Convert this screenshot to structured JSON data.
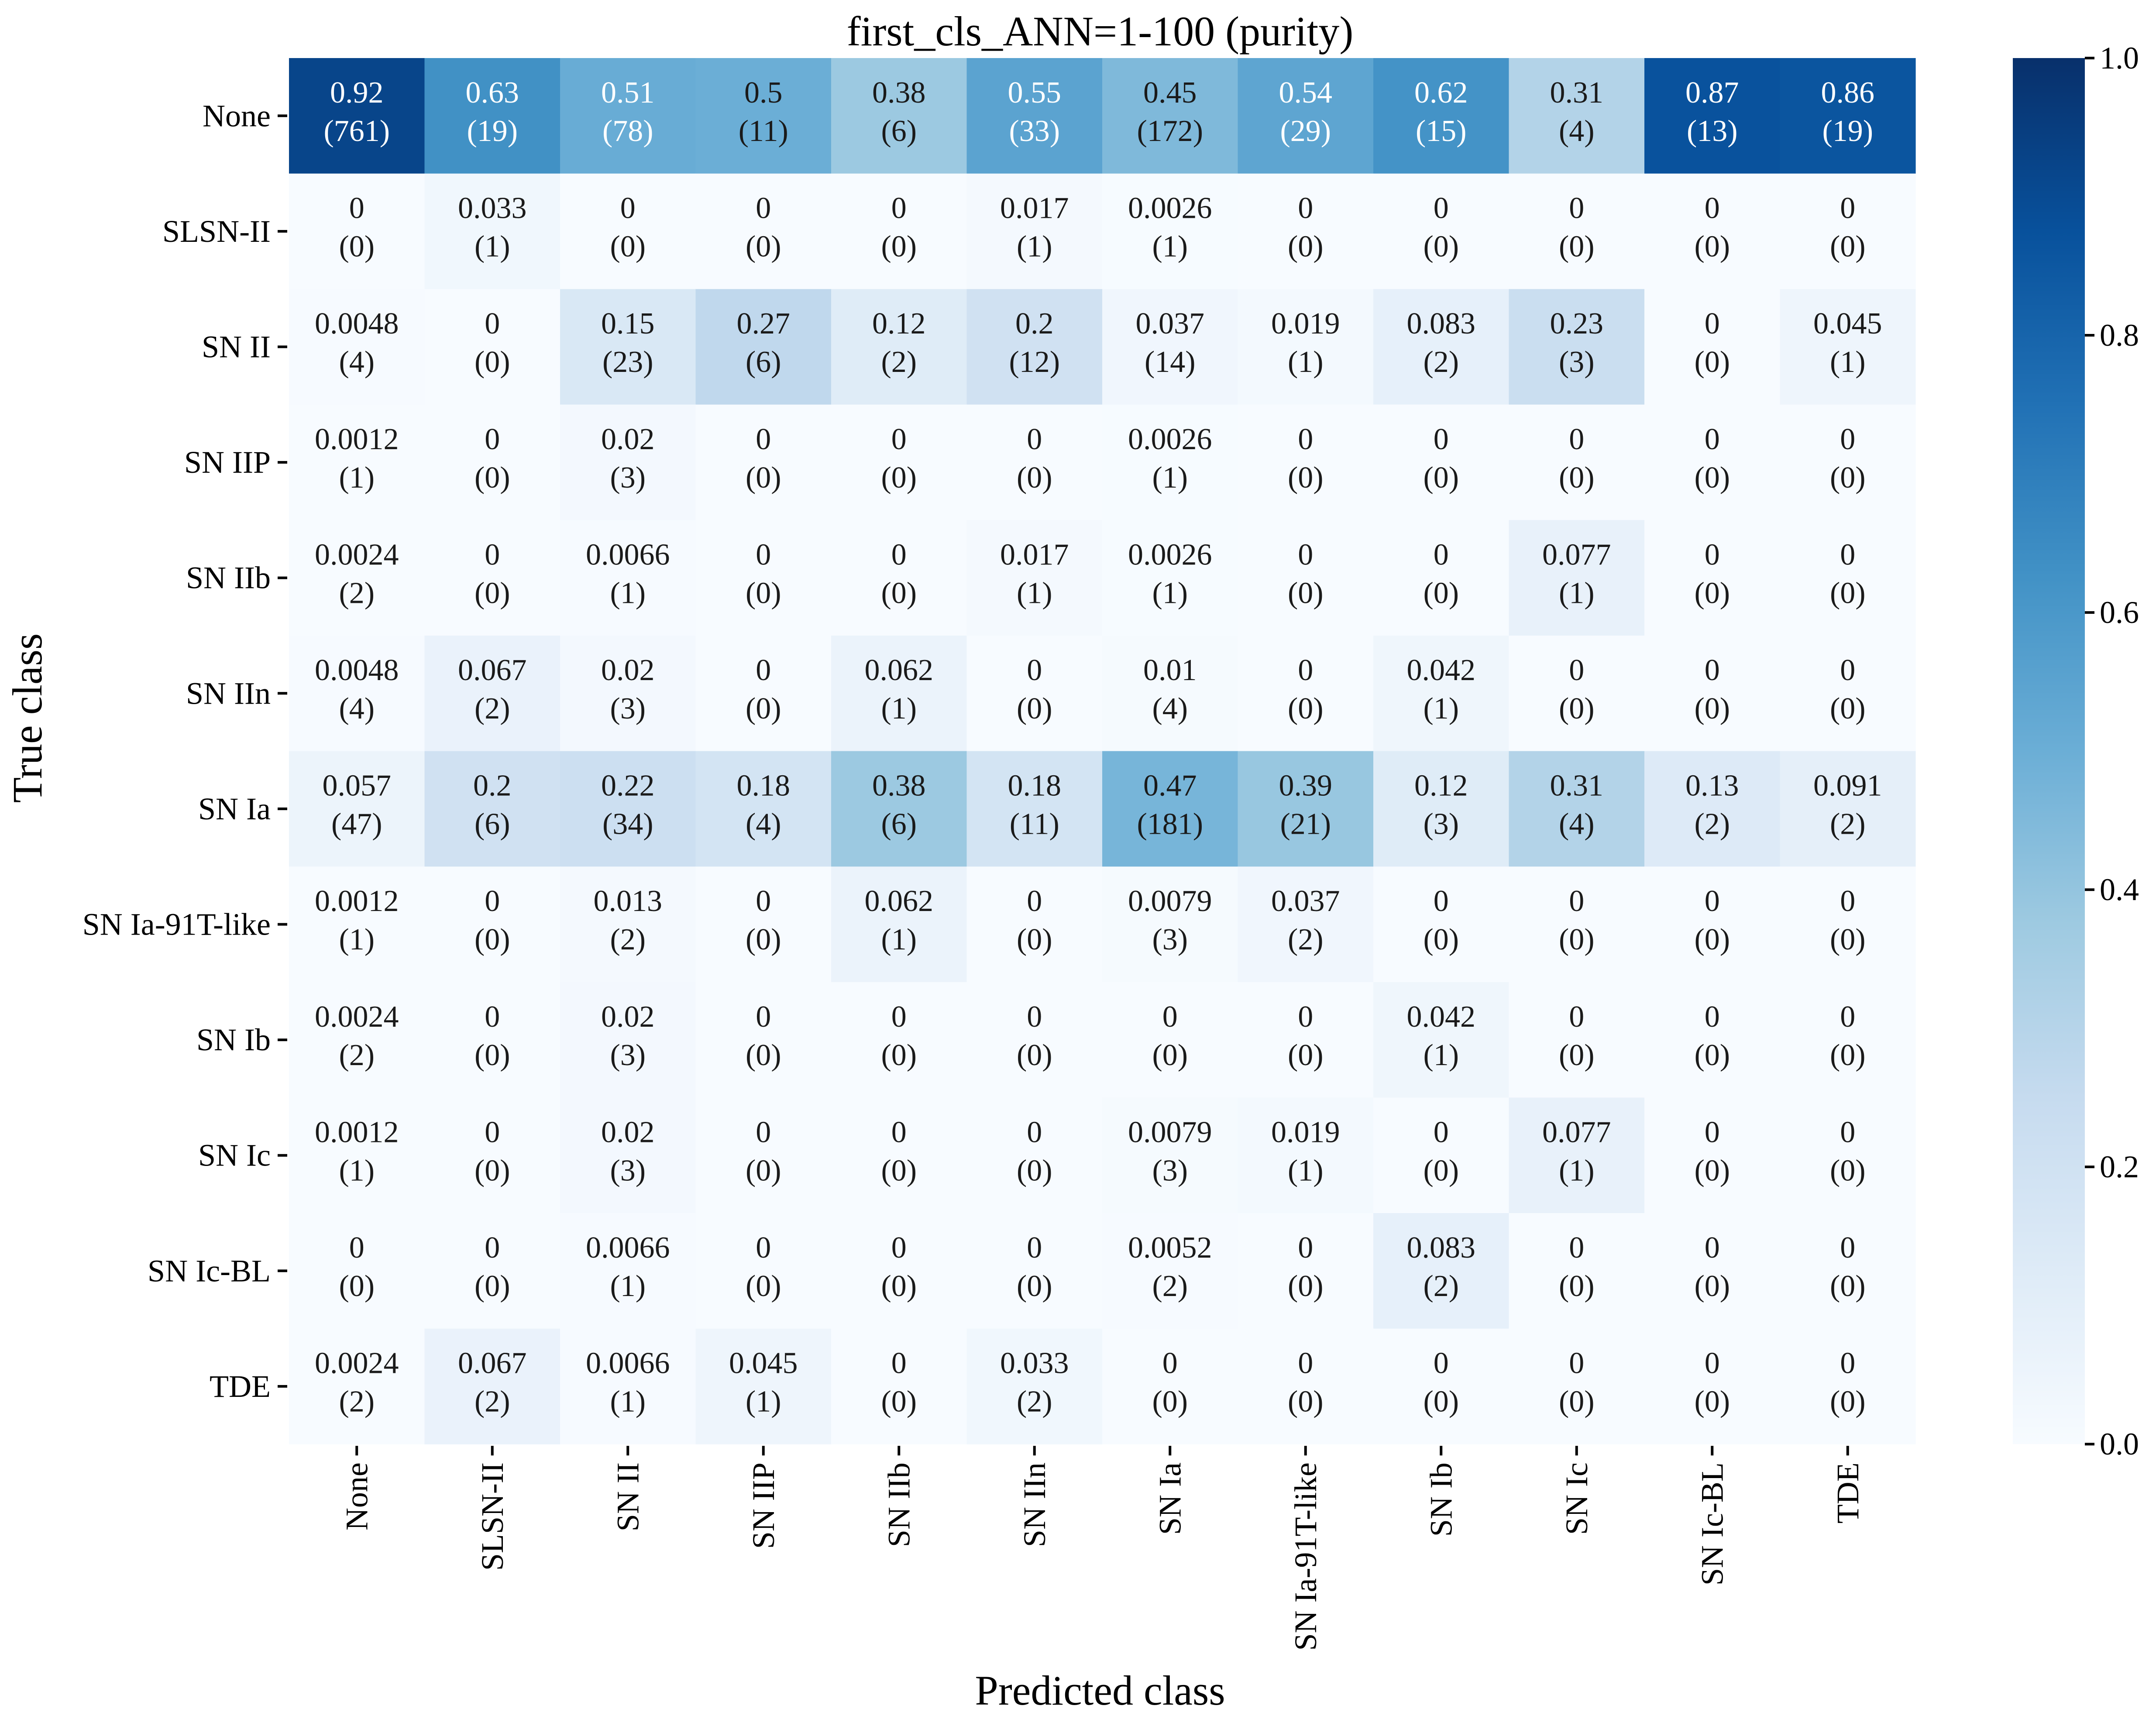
{
  "chart_data": {
    "type": "heatmap",
    "title": "first_cls_ANN=1-100 (purity)",
    "xlabel": "Predicted class",
    "ylabel": "True class",
    "x_categories": [
      "None",
      "SLSN-II",
      "SN II",
      "SN IIP",
      "SN IIb",
      "SN IIn",
      "SN Ia",
      "SN Ia-91T-like",
      "SN Ib",
      "SN Ic",
      "SN Ic-BL",
      "TDE"
    ],
    "y_categories": [
      "None",
      "SLSN-II",
      "SN II",
      "SN IIP",
      "SN IIb",
      "SN IIn",
      "SN Ia",
      "SN Ia-91T-like",
      "SN Ib",
      "SN Ic",
      "SN Ic-BL",
      "TDE"
    ],
    "values": [
      [
        "0.92",
        "0.63",
        "0.51",
        "0.5",
        "0.38",
        "0.55",
        "0.45",
        "0.54",
        "0.62",
        "0.31",
        "0.87",
        "0.86"
      ],
      [
        "0",
        "0.033",
        "0",
        "0",
        "0",
        "0.017",
        "0.0026",
        "0",
        "0",
        "0",
        "0",
        "0"
      ],
      [
        "0.0048",
        "0",
        "0.15",
        "0.27",
        "0.12",
        "0.2",
        "0.037",
        "0.019",
        "0.083",
        "0.23",
        "0",
        "0.045"
      ],
      [
        "0.0012",
        "0",
        "0.02",
        "0",
        "0",
        "0",
        "0.0026",
        "0",
        "0",
        "0",
        "0",
        "0"
      ],
      [
        "0.0024",
        "0",
        "0.0066",
        "0",
        "0",
        "0.017",
        "0.0026",
        "0",
        "0",
        "0.077",
        "0",
        "0"
      ],
      [
        "0.0048",
        "0.067",
        "0.02",
        "0",
        "0.062",
        "0",
        "0.01",
        "0",
        "0.042",
        "0",
        "0",
        "0"
      ],
      [
        "0.057",
        "0.2",
        "0.22",
        "0.18",
        "0.38",
        "0.18",
        "0.47",
        "0.39",
        "0.12",
        "0.31",
        "0.13",
        "0.091"
      ],
      [
        "0.0012",
        "0",
        "0.013",
        "0",
        "0.062",
        "0",
        "0.0079",
        "0.037",
        "0",
        "0",
        "0",
        "0"
      ],
      [
        "0.0024",
        "0",
        "0.02",
        "0",
        "0",
        "0",
        "0",
        "0",
        "0.042",
        "0",
        "0",
        "0"
      ],
      [
        "0.0012",
        "0",
        "0.02",
        "0",
        "0",
        "0",
        "0.0079",
        "0.019",
        "0",
        "0.077",
        "0",
        "0"
      ],
      [
        "0",
        "0",
        "0.0066",
        "0",
        "0",
        "0",
        "0.0052",
        "0",
        "0.083",
        "0",
        "0",
        "0"
      ],
      [
        "0.0024",
        "0.067",
        "0.0066",
        "0.045",
        "0",
        "0.033",
        "0",
        "0",
        "0",
        "0",
        "0",
        "0"
      ]
    ],
    "counts": [
      [
        "(761)",
        "(19)",
        "(78)",
        "(11)",
        "(6)",
        "(33)",
        "(172)",
        "(29)",
        "(15)",
        "(4)",
        "(13)",
        "(19)"
      ],
      [
        "(0)",
        "(1)",
        "(0)",
        "(0)",
        "(0)",
        "(1)",
        "(1)",
        "(0)",
        "(0)",
        "(0)",
        "(0)",
        "(0)"
      ],
      [
        "(4)",
        "(0)",
        "(23)",
        "(6)",
        "(2)",
        "(12)",
        "(14)",
        "(1)",
        "(2)",
        "(3)",
        "(0)",
        "(1)"
      ],
      [
        "(1)",
        "(0)",
        "(3)",
        "(0)",
        "(0)",
        "(0)",
        "(1)",
        "(0)",
        "(0)",
        "(0)",
        "(0)",
        "(0)"
      ],
      [
        "(2)",
        "(0)",
        "(1)",
        "(0)",
        "(0)",
        "(1)",
        "(1)",
        "(0)",
        "(0)",
        "(1)",
        "(0)",
        "(0)"
      ],
      [
        "(4)",
        "(2)",
        "(3)",
        "(0)",
        "(1)",
        "(0)",
        "(4)",
        "(0)",
        "(1)",
        "(0)",
        "(0)",
        "(0)"
      ],
      [
        "(47)",
        "(6)",
        "(34)",
        "(4)",
        "(6)",
        "(11)",
        "(181)",
        "(21)",
        "(3)",
        "(4)",
        "(2)",
        "(2)"
      ],
      [
        "(1)",
        "(0)",
        "(2)",
        "(0)",
        "(1)",
        "(0)",
        "(3)",
        "(2)",
        "(0)",
        "(0)",
        "(0)",
        "(0)"
      ],
      [
        "(2)",
        "(0)",
        "(3)",
        "(0)",
        "(0)",
        "(0)",
        "(0)",
        "(0)",
        "(1)",
        "(0)",
        "(0)",
        "(0)"
      ],
      [
        "(1)",
        "(0)",
        "(3)",
        "(0)",
        "(0)",
        "(0)",
        "(3)",
        "(1)",
        "(0)",
        "(1)",
        "(0)",
        "(0)"
      ],
      [
        "(0)",
        "(0)",
        "(1)",
        "(0)",
        "(0)",
        "(0)",
        "(2)",
        "(0)",
        "(2)",
        "(0)",
        "(0)",
        "(0)"
      ],
      [
        "(2)",
        "(2)",
        "(1)",
        "(1)",
        "(0)",
        "(2)",
        "(0)",
        "(0)",
        "(0)",
        "(0)",
        "(0)",
        "(0)"
      ]
    ],
    "colorbar": {
      "range": [
        0,
        1
      ],
      "ticks": [
        "0.0",
        "0.2",
        "0.4",
        "0.6",
        "0.8",
        "1.0"
      ],
      "colormap": "Blues"
    },
    "colors": {
      "low": "#f7fbff",
      "high": "#08306b"
    },
    "grid": false,
    "legend": "colorbar-right"
  }
}
